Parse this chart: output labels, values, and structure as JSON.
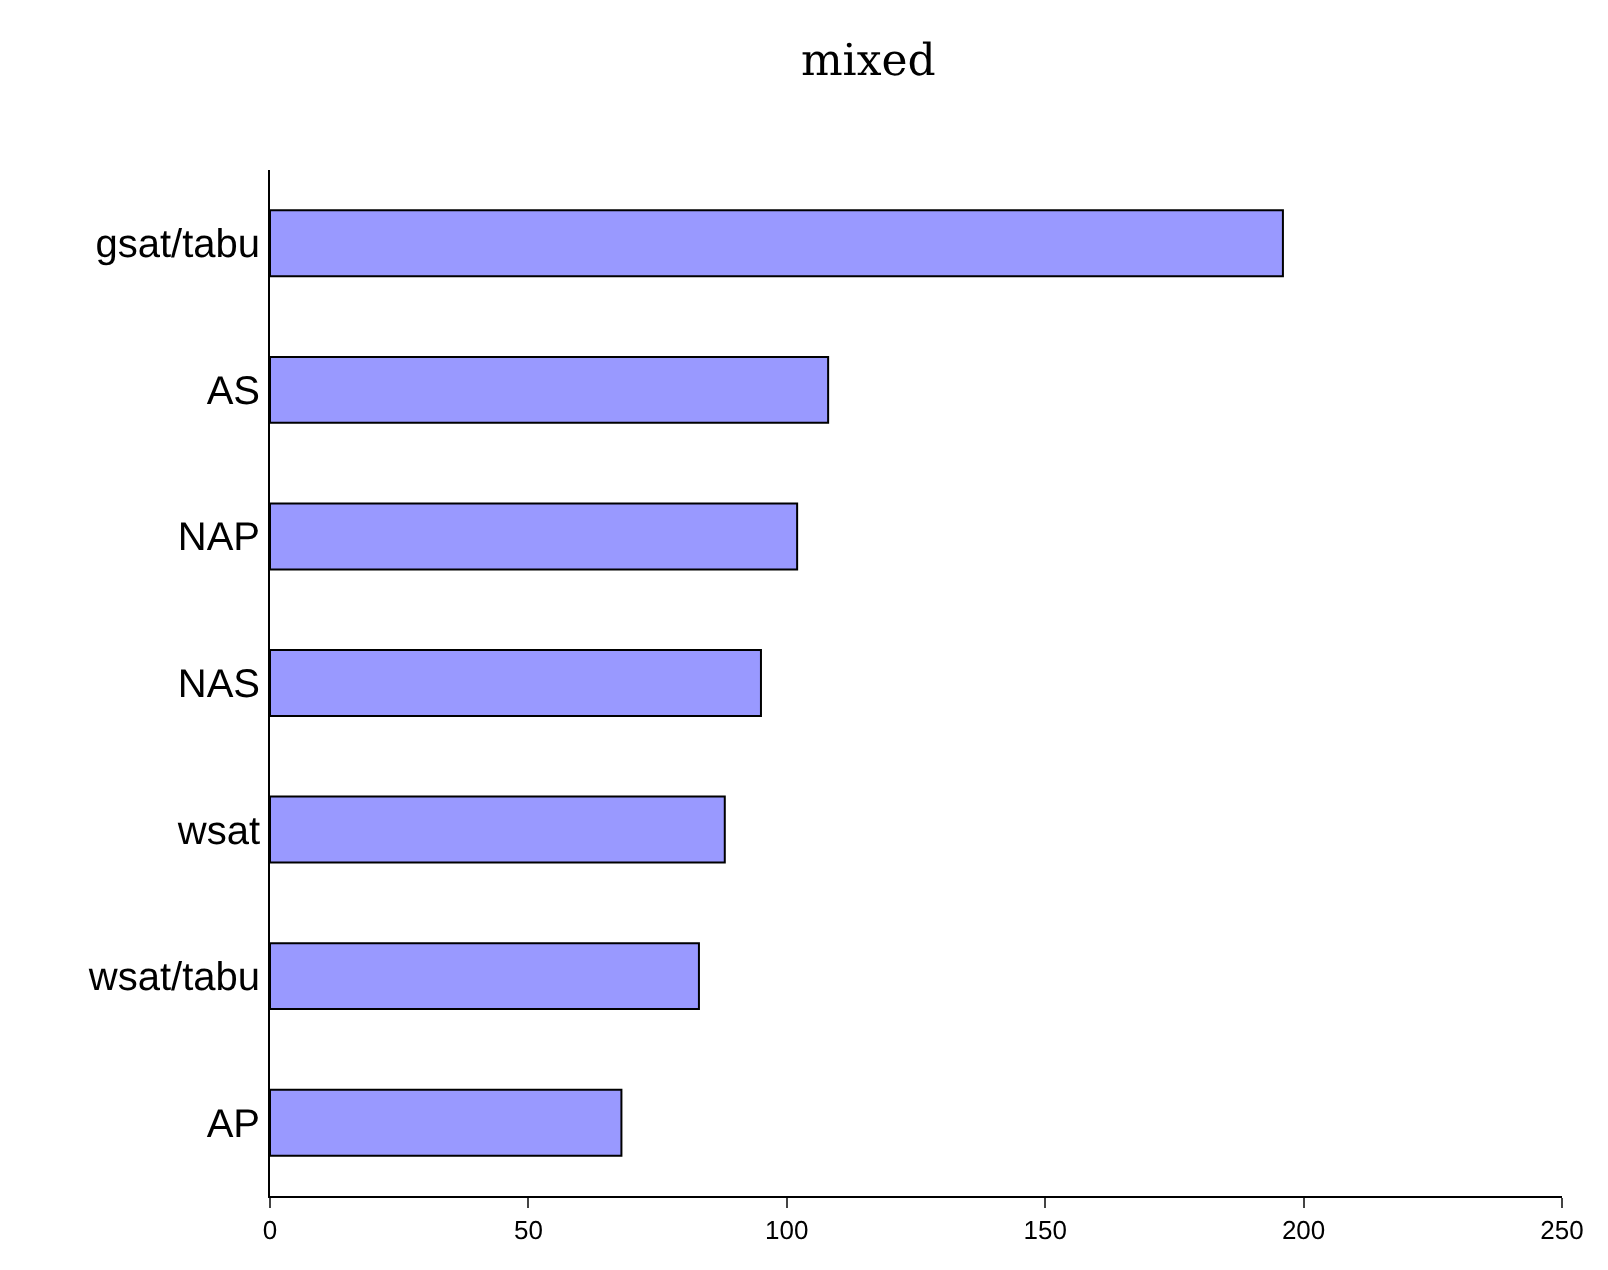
{
  "chart_data": {
    "type": "bar",
    "title": "mixed",
    "orientation": "horizontal",
    "categories": [
      "gsat/tabu",
      "AS",
      "NAP",
      "NAS",
      "wsat",
      "wsat/tabu",
      "AP"
    ],
    "values": [
      196,
      108,
      102,
      95,
      88,
      83,
      68
    ],
    "color": "#9999ff",
    "xlim": [
      0,
      250
    ],
    "xticks": [
      0,
      50,
      100,
      150,
      200,
      250
    ],
    "legend": false
  }
}
